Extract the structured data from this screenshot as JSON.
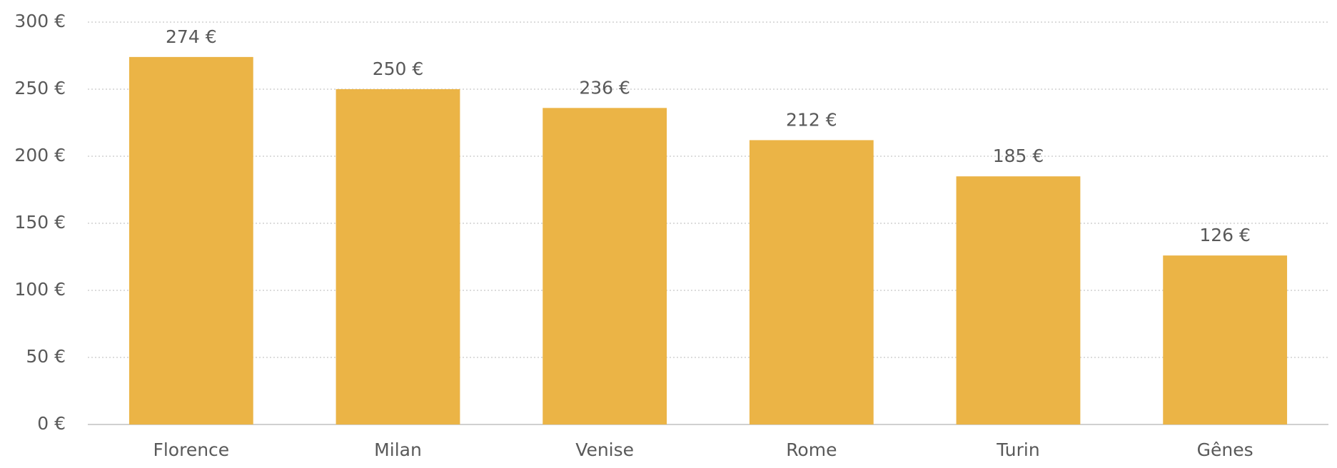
{
  "chart_data": {
    "type": "bar",
    "categories": [
      "Florence",
      "Milan",
      "Venise",
      "Rome",
      "Turin",
      "Gênes"
    ],
    "values": [
      274,
      250,
      236,
      212,
      185,
      126
    ],
    "value_labels": [
      "274 €",
      "250 €",
      "236 €",
      "212 €",
      "185 €",
      "126 €"
    ],
    "color": "#ebb446",
    "ylim": [
      0,
      300
    ],
    "yticks": [
      {
        "value": 0,
        "label": "0 €"
      },
      {
        "value": 50,
        "label": "50 €"
      },
      {
        "value": 100,
        "label": "100 €"
      },
      {
        "value": 150,
        "label": "150 €"
      },
      {
        "value": 200,
        "label": "200 €"
      },
      {
        "value": 250,
        "label": "250 €"
      },
      {
        "value": 300,
        "label": "300 €"
      }
    ],
    "grid": true
  }
}
